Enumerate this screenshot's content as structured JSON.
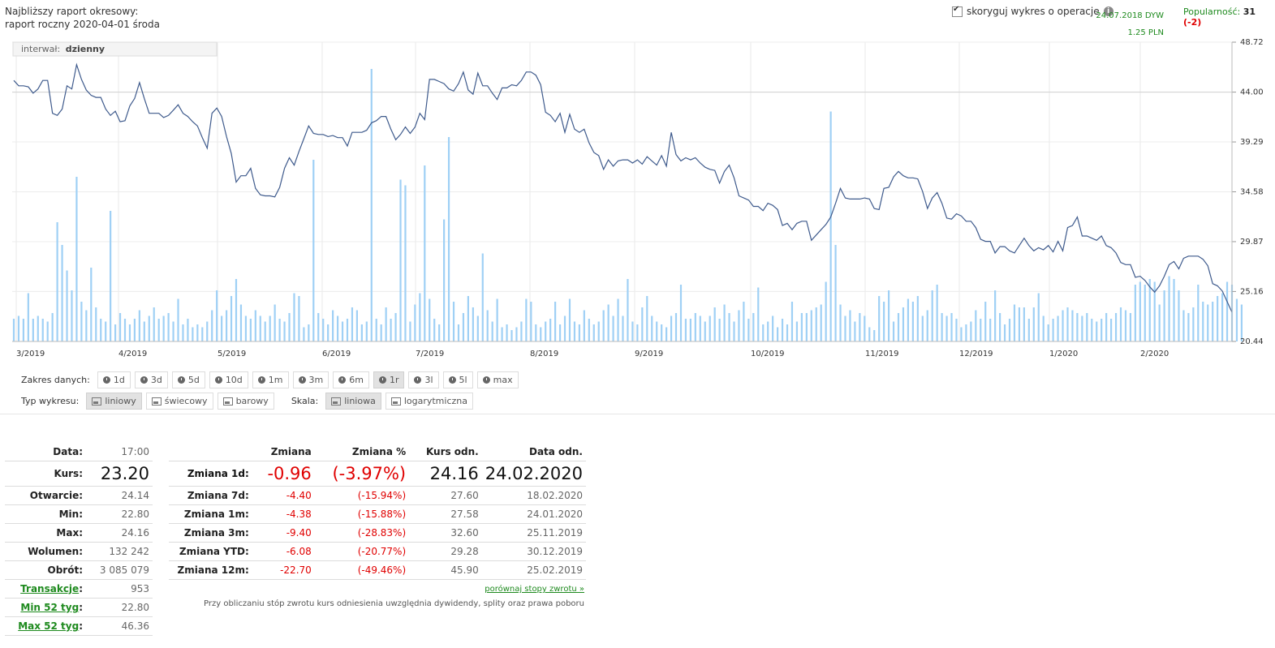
{
  "header": {
    "next_report_label": "Najbliższy raport okresowy:",
    "next_report_value": "raport roczny 2020-04-01 środa",
    "adjust_label": "skoryguj wykres o operacje",
    "adjust_checked": true,
    "dividend_date": "24.07.2018 DYW",
    "dividend_value": "1.25 PLN",
    "popularity_label": "Popularność:",
    "popularity_value": "31",
    "popularity_change": "(-2)"
  },
  "chart_data": {
    "type": "line",
    "interval_label": "interwał:",
    "interval_value": "dzienny",
    "y_ticks": [
      "48.72",
      "44.00",
      "39.29",
      "34.58",
      "29.87",
      "25.16",
      "20.44"
    ],
    "ylim": [
      20.44,
      48.72
    ],
    "x_ticks": [
      "3/2019",
      "4/2019",
      "5/2019",
      "6/2019",
      "7/2019",
      "8/2019",
      "9/2019",
      "10/2019",
      "11/2019",
      "12/2019",
      "1/2020",
      "2/2020"
    ],
    "colors": {
      "line": "#3e5a8c",
      "volume": "#9fd0f5",
      "grid": "#e6e6e6"
    },
    "series": [
      {
        "values": [
          45.1,
          44.6,
          44.6,
          44.5,
          43.9,
          44.3,
          45.1,
          45.1,
          42.0,
          41.8,
          42.4,
          44.6,
          44.3,
          46.6,
          45.2,
          44.2,
          43.7,
          43.5,
          43.5,
          42.4,
          41.8,
          42.2,
          41.2,
          41.3,
          42.7,
          43.4,
          44.9,
          43.4,
          42.0,
          42.0,
          42.0,
          41.6,
          41.8,
          42.3,
          42.8,
          42.0,
          41.7,
          41.2,
          40.8,
          39.7,
          38.7,
          42.0,
          42.5,
          41.7,
          39.8,
          38.2,
          35.5,
          36.1,
          36.1,
          36.8,
          34.9,
          34.3,
          34.2,
          34.2,
          34.1,
          35.0,
          36.8,
          37.8,
          37.1,
          38.4,
          39.6,
          40.8,
          40.1,
          40.0,
          40.0,
          39.8,
          39.9,
          39.7,
          39.7,
          38.9,
          40.2,
          40.2,
          40.2,
          40.4,
          41.1,
          41.3,
          41.7,
          41.7,
          40.5,
          39.5,
          40.0,
          40.7,
          40.1,
          40.7,
          42.0,
          41.4,
          45.2,
          45.2,
          45.0,
          44.8,
          44.3,
          44.1,
          44.8,
          45.9,
          44.2,
          43.8,
          45.8,
          44.6,
          44.6,
          43.9,
          43.3,
          44.4,
          44.4,
          44.7,
          44.6,
          45.1,
          45.9,
          45.9,
          45.6,
          44.7,
          42.1,
          41.8,
          41.2,
          42.0,
          40.2,
          41.9,
          40.5,
          40.2,
          40.5,
          39.2,
          38.3,
          38.0,
          36.7,
          37.6,
          37.0,
          37.5,
          37.6,
          37.6,
          37.3,
          37.6,
          37.2,
          37.9,
          37.5,
          37.1,
          38.0,
          37.0,
          40.2,
          38.1,
          37.5,
          37.8,
          37.6,
          37.8,
          37.3,
          36.9,
          36.7,
          36.6,
          35.4,
          36.5,
          37.1,
          35.9,
          34.2,
          34.0,
          33.8,
          33.2,
          33.2,
          32.8,
          33.5,
          33.3,
          32.9,
          31.4,
          31.6,
          31.0,
          31.6,
          31.8,
          31.8,
          30.0,
          30.5,
          31.0,
          31.5,
          32.2,
          33.5,
          34.9,
          34.0,
          33.9,
          33.9,
          33.9,
          34.0,
          33.9,
          33.0,
          32.9,
          34.9,
          35.0,
          36.0,
          36.5,
          36.1,
          35.9,
          35.9,
          35.8,
          34.6,
          33.0,
          34.0,
          34.5,
          33.5,
          32.1,
          32.0,
          32.5,
          32.3,
          31.8,
          31.8,
          31.2,
          30.1,
          29.9,
          29.9,
          28.8,
          29.4,
          29.4,
          29.0,
          28.8,
          29.5,
          30.2,
          29.5,
          29.0,
          29.3,
          29.1,
          29.5,
          28.9,
          29.9,
          29.0,
          31.2,
          31.4,
          32.2,
          30.4,
          30.4,
          30.2,
          30.0,
          30.4,
          29.5,
          29.3,
          28.8,
          27.9,
          27.7,
          27.7,
          26.5,
          26.6,
          26.2,
          25.6,
          25.1,
          25.7,
          26.6,
          27.7,
          28.0,
          27.3,
          28.3,
          28.5,
          28.5,
          28.5,
          28.2,
          27.6,
          25.9,
          25.7,
          25.2,
          24.2,
          23.2
        ]
      }
    ],
    "volume": [
      8,
      9,
      8,
      17,
      8,
      9,
      8,
      7,
      10,
      42,
      34,
      25,
      18,
      58,
      14,
      11,
      26,
      12,
      8,
      7,
      46,
      6,
      10,
      8,
      6,
      8,
      11,
      7,
      9,
      12,
      8,
      9,
      10,
      7,
      15,
      6,
      8,
      5,
      6,
      5,
      7,
      11,
      18,
      9,
      11,
      16,
      22,
      13,
      9,
      8,
      11,
      9,
      7,
      9,
      13,
      8,
      7,
      10,
      17,
      16,
      5,
      6,
      64,
      10,
      8,
      6,
      11,
      9,
      7,
      8,
      12,
      11,
      6,
      7,
      96,
      8,
      6,
      12,
      8,
      10,
      57,
      55,
      7,
      13,
      17,
      62,
      15,
      8,
      6,
      43,
      72,
      14,
      6,
      10,
      16,
      12,
      9,
      31,
      11,
      7,
      15,
      5,
      6,
      4,
      5,
      7,
      15,
      14,
      6,
      5,
      7,
      8,
      14,
      6,
      9,
      15,
      7,
      6,
      11,
      8,
      6,
      7,
      11,
      13,
      9,
      15,
      9,
      22,
      7,
      6,
      12,
      16,
      9,
      7,
      6,
      5,
      9,
      10,
      20,
      8,
      8,
      10,
      9,
      7,
      9,
      12,
      8,
      13,
      10,
      7,
      11,
      14,
      8,
      10,
      19,
      6,
      7,
      9,
      5,
      8,
      6,
      14,
      7,
      10,
      10,
      11,
      12,
      13,
      21,
      81,
      34,
      13,
      9,
      11,
      7,
      10,
      9,
      5,
      4,
      16,
      14,
      18,
      7,
      10,
      12,
      15,
      14,
      16,
      9,
      11,
      18,
      20,
      10,
      9,
      10,
      8,
      5,
      6,
      7,
      11,
      8,
      14,
      8,
      18,
      10,
      6,
      8,
      13,
      12,
      12,
      8,
      12,
      17,
      9,
      6,
      8,
      9,
      11,
      12,
      11,
      10,
      9,
      10,
      8,
      7,
      8,
      10,
      8,
      10,
      12,
      11,
      10,
      20,
      21,
      20,
      22,
      21,
      13,
      18,
      23,
      22,
      18,
      11,
      10,
      12,
      20,
      14,
      13,
      14,
      16,
      17,
      21,
      20,
      15,
      13
    ],
    "volume_max": 100,
    "grid": true
  },
  "controls": {
    "range_label": "Zakres danych:",
    "range_buttons": [
      "1d",
      "3d",
      "5d",
      "10d",
      "1m",
      "3m",
      "6m",
      "1r",
      "3l",
      "5l",
      "max"
    ],
    "range_active": "1r",
    "type_label": "Typ wykresu:",
    "type_buttons": [
      "liniowy",
      "świecowy",
      "barowy"
    ],
    "type_active": "liniowy",
    "scale_label": "Skala:",
    "scale_buttons": [
      "liniowa",
      "logarytmiczna"
    ],
    "scale_active": "liniowa"
  },
  "quote": {
    "date_label": "Data:",
    "date_value": "17:00",
    "price_label": "Kurs:",
    "price_value": "23.20",
    "rows": [
      {
        "label": "Otwarcie:",
        "value": "24.14"
      },
      {
        "label": "Min:",
        "value": "22.80"
      },
      {
        "label": "Max:",
        "value": "24.16"
      },
      {
        "label": "Wolumen:",
        "value": "132 242"
      },
      {
        "label": "Obrót:",
        "value": "3 085 079"
      }
    ],
    "link_rows": [
      {
        "label": "Transakcje",
        "value": "953"
      },
      {
        "label": "Min 52 tyg",
        "value": "22.80"
      },
      {
        "label": "Max 52 tyg",
        "value": "46.36"
      }
    ]
  },
  "changes": {
    "headers": [
      "Zmiana",
      "Zmiana %",
      "Kurs odn.",
      "Data odn."
    ],
    "main": {
      "label": "Zmiana 1d:",
      "change": "-0.96",
      "pct": "(-3.97%)",
      "ref": "24.16",
      "date": "24.02.2020"
    },
    "rows": [
      {
        "label": "Zmiana 7d:",
        "change": "-4.40",
        "pct": "(-15.94%)",
        "ref": "27.60",
        "date": "18.02.2020"
      },
      {
        "label": "Zmiana 1m:",
        "change": "-4.38",
        "pct": "(-15.88%)",
        "ref": "27.58",
        "date": "24.01.2020"
      },
      {
        "label": "Zmiana 3m:",
        "change": "-9.40",
        "pct": "(-28.83%)",
        "ref": "32.60",
        "date": "25.11.2019"
      },
      {
        "label": "Zmiana YTD:",
        "change": "-6.08",
        "pct": "(-20.77%)",
        "ref": "29.28",
        "date": "30.12.2019"
      },
      {
        "label": "Zmiana 12m:",
        "change": "-22.70",
        "pct": "(-49.46%)",
        "ref": "45.90",
        "date": "25.02.2019"
      }
    ],
    "compare_link": "porównaj stopy zwrotu »",
    "note": "Przy obliczaniu stóp zwrotu kurs odniesienia uwzględnia dywidendy, splity oraz prawa poboru"
  }
}
